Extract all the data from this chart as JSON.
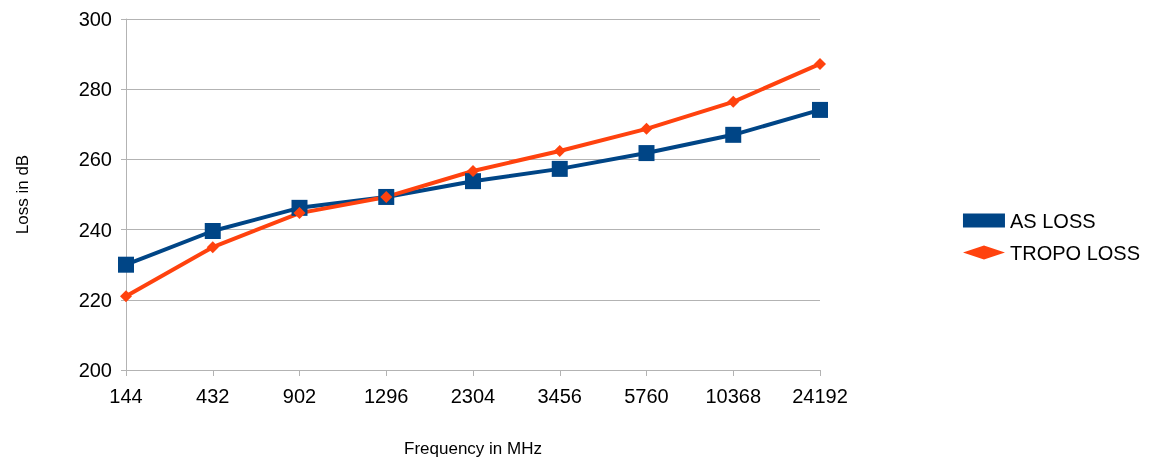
{
  "chart_data": {
    "type": "line",
    "xlabel": "Frequency in MHz",
    "ylabel": "Loss in dB",
    "categories": [
      "144",
      "432",
      "902",
      "1296",
      "2304",
      "3456",
      "5760",
      "10368",
      "24192"
    ],
    "series": [
      {
        "name": "AS LOSS",
        "color": "#004586",
        "marker": "square",
        "values": [
          230,
          239.6,
          246.2,
          249.3,
          253.8,
          257.3,
          261.8,
          267,
          274.1
        ]
      },
      {
        "name": "TROPO LOSS",
        "color": "#ff420e",
        "marker": "diamond",
        "values": [
          221,
          235,
          244.7,
          249.3,
          256.7,
          262.4,
          268.7,
          276.4,
          287.2
        ]
      }
    ],
    "ylim": [
      200,
      300
    ],
    "yticks": [
      200,
      220,
      240,
      260,
      280,
      300
    ],
    "grid": "y",
    "legend": "right",
    "line_style": "solid"
  }
}
